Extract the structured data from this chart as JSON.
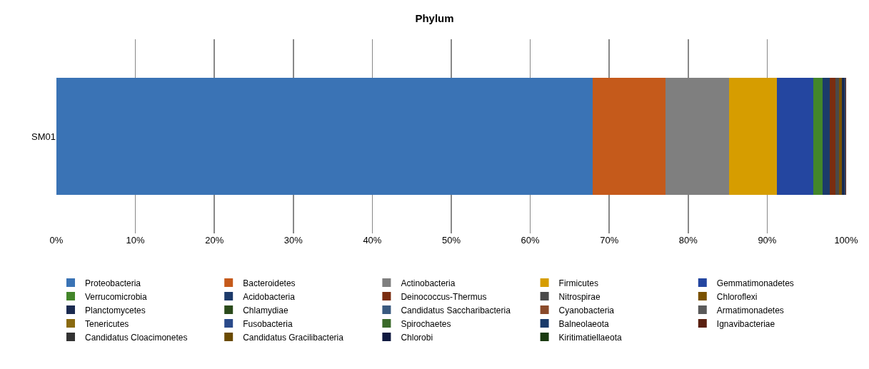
{
  "chart_data": {
    "type": "bar",
    "orientation": "horizontal",
    "stacked": true,
    "title": "Phylum",
    "categories": [
      "SM01"
    ],
    "xlim": [
      0,
      100
    ],
    "xticks": [
      {
        "value": 0,
        "label": "0%"
      },
      {
        "value": 10,
        "label": "10%"
      },
      {
        "value": 20,
        "label": "20%"
      },
      {
        "value": 30,
        "label": "30%"
      },
      {
        "value": 40,
        "label": "40%"
      },
      {
        "value": 50,
        "label": "50%"
      },
      {
        "value": 60,
        "label": "60%"
      },
      {
        "value": 70,
        "label": "70%"
      },
      {
        "value": 80,
        "label": "80%"
      },
      {
        "value": 90,
        "label": "90%"
      },
      {
        "value": 100,
        "label": "100%"
      }
    ],
    "grid": "x",
    "legend": "bottom",
    "series": [
      {
        "name": "Proteobacteria",
        "color": "#3a73b5",
        "values": [
          67.9
        ]
      },
      {
        "name": "Bacteroidetes",
        "color": "#c55a1b",
        "values": [
          9.2
        ]
      },
      {
        "name": "Actinobacteria",
        "color": "#7f7f7f",
        "values": [
          8.1
        ]
      },
      {
        "name": "Firmicutes",
        "color": "#d69d00",
        "values": [
          6.0
        ]
      },
      {
        "name": "Gemmatimonadetes",
        "color": "#2446a0",
        "values": [
          4.6
        ]
      },
      {
        "name": "Verrucomicrobia",
        "color": "#43862a",
        "values": [
          1.2
        ]
      },
      {
        "name": "Acidobacteria",
        "color": "#1c3a6a",
        "values": [
          0.9
        ]
      },
      {
        "name": "Deinococcus-Thermus",
        "color": "#7a2d10",
        "values": [
          0.7
        ]
      },
      {
        "name": "Nitrospirae",
        "color": "#4a4a4a",
        "values": [
          0.5
        ]
      },
      {
        "name": "Chloroflexi",
        "color": "#7a5200",
        "values": [
          0.4
        ]
      },
      {
        "name": "Planctomycetes",
        "color": "#1a2a50",
        "values": [
          0.3
        ]
      },
      {
        "name": "Chlamydiae",
        "color": "#2a4a1a",
        "values": [
          0.05
        ]
      },
      {
        "name": "Candidatus Saccharibacteria",
        "color": "#3a5a80",
        "values": [
          0.03
        ]
      },
      {
        "name": "Cyanobacteria",
        "color": "#8a4a2a",
        "values": [
          0.02
        ]
      },
      {
        "name": "Armatimonadetes",
        "color": "#5a5a5a",
        "values": [
          0.01
        ]
      },
      {
        "name": "Tenericutes",
        "color": "#8a6a10",
        "values": [
          0.01
        ]
      },
      {
        "name": "Fusobacteria",
        "color": "#2a4a8a",
        "values": [
          0.01
        ]
      },
      {
        "name": "Spirochaetes",
        "color": "#3a6a2a",
        "values": [
          0.01
        ]
      },
      {
        "name": "Balneolaeota",
        "color": "#1a3a6a",
        "values": [
          0.01
        ]
      },
      {
        "name": "Ignavibacteriae",
        "color": "#5a2010",
        "values": [
          0.01
        ]
      },
      {
        "name": "Candidatus Cloacimonetes",
        "color": "#333333",
        "values": [
          0.01
        ]
      },
      {
        "name": "Candidatus Gracilibacteria",
        "color": "#6a4a00",
        "values": [
          0.01
        ]
      },
      {
        "name": "Chlorobi",
        "color": "#101a40",
        "values": [
          0.01
        ]
      },
      {
        "name": "Kiritimatiellaeota",
        "color": "#1a3a10",
        "values": [
          0.01
        ]
      }
    ]
  }
}
